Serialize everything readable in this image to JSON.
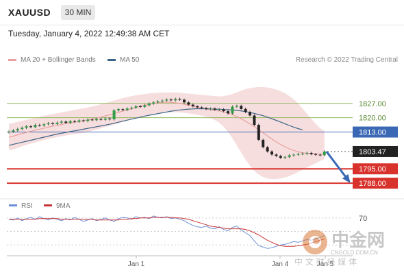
{
  "header": {
    "symbol": "XAUUSD",
    "timeframe": "30 MIN"
  },
  "timestamp": "Tuesday, January 4, 2022 12:49:38 AM CET",
  "legend": {
    "ma20": "MA 20 + Bollinger Bands",
    "ma50": "MA 50"
  },
  "credit": "Research © 2022 Trading Central",
  "rsi_legend": {
    "rsi": "RSI",
    "ma9": "9MA"
  },
  "watermark": {
    "cn": "中金网",
    "url": "CNGOLD.COM.CN",
    "sub": "中 文 财 经 媒 体"
  },
  "colors": {
    "ma20": "#e8a0a0",
    "ma50": "#3c6488",
    "support": "#d8322c",
    "resistance": "#8db85c",
    "pivot": "#3a68b4",
    "rsi": "#6a8fd6",
    "rsi_ma": "#cc3333",
    "arrow": "#3a68b4"
  },
  "chart_data": {
    "type": "candlestick",
    "y_range": [
      1783,
      1839
    ],
    "x_ticks": [
      "Jan 1",
      "Jan 4",
      "Jan 5"
    ],
    "price_levels": [
      {
        "label": "1827.00",
        "value": 1827.0,
        "kind": "resistance"
      },
      {
        "label": "1820.00",
        "value": 1820.0,
        "kind": "resistance"
      },
      {
        "label": "1813.00",
        "value": 1813.0,
        "kind": "pivot"
      },
      {
        "label": "1803.47",
        "value": 1803.47,
        "kind": "last"
      },
      {
        "label": "1795.00",
        "value": 1795.0,
        "kind": "support"
      },
      {
        "label": "1788.00",
        "value": 1788.0,
        "kind": "support"
      }
    ],
    "close": [
      1813.2,
      1813.8,
      1814.5,
      1815.1,
      1815.8,
      1815.4,
      1816.5,
      1816.2,
      1816.8,
      1817.3,
      1816.9,
      1817.6,
      1818.1,
      1817.5,
      1818.3,
      1818.0,
      1818.7,
      1818.4,
      1819.1,
      1818.8,
      1819.4,
      1819.0,
      1819.6,
      1819.2,
      1823.6,
      1824.2,
      1823.8,
      1824.5,
      1824.9,
      1825.6,
      1825.3,
      1826.1,
      1826.9,
      1827.5,
      1828.0,
      1828.4,
      1828.9,
      1828.5,
      1829.2,
      1828.8,
      1827.5,
      1826.4,
      1825.6,
      1825.1,
      1824.7,
      1824.2,
      1824.5,
      1823.9,
      1824.1,
      1823.2,
      1822.1,
      1825.4,
      1825.8,
      1824.3,
      1822.8,
      1821.1,
      1816.5,
      1809.2,
      1805.6,
      1803.5,
      1802.0,
      1801.3,
      1800.4,
      1800.8,
      1801.6,
      1801.9,
      1802.3,
      1802.4,
      1802.8,
      1802.2,
      1801.9,
      1801.7,
      1803.47
    ],
    "ma20": [
      1810.5,
      1811.0,
      1811.6,
      1812.2,
      1812.8,
      1813.4,
      1813.9,
      1814.4,
      1814.9,
      1815.4,
      1815.9,
      1816.3,
      1816.7,
      1817.1,
      1817.5,
      1817.8,
      1818.1,
      1818.4,
      1818.8,
      1819.3,
      1819.8,
      1820.3,
      1820.9,
      1821.4,
      1822.0,
      1822.6,
      1823.2,
      1823.8,
      1824.4,
      1825.0,
      1825.6,
      1826.1,
      1826.6,
      1827.0,
      1827.3,
      1827.5,
      1827.6,
      1827.5,
      1827.3,
      1827.0,
      1826.6,
      1826.1,
      1825.6,
      1825.1,
      1824.6,
      1824.2,
      1823.8,
      1823.5,
      1823.3,
      1822.8,
      1822.2,
      1821.5,
      1820.6,
      1819.5,
      1818.3,
      1817.0,
      1815.6,
      1814.1,
      1812.6,
      1811.1,
      1809.6,
      1808.2,
      1806.9,
      1805.8,
      1804.8,
      1804.0,
      1803.4,
      1802.9,
      1802.6,
      1802.4,
      1802.3,
      1802.2,
      1802.2
    ],
    "ma50": [
      1806.5,
      1807.0,
      1807.5,
      1808.0,
      1808.5,
      1809.0,
      1809.5,
      1810.0,
      1810.5,
      1811.0,
      1811.5,
      1812.0,
      1812.4,
      1812.8,
      1813.2,
      1813.6,
      1814.0,
      1814.4,
      1814.8,
      1815.2,
      1815.6,
      1816.0,
      1816.4,
      1816.8,
      1817.3,
      1817.8,
      1818.3,
      1818.8,
      1819.3,
      1819.8,
      1820.3,
      1820.8,
      1821.2,
      1821.6,
      1822.0,
      1822.4,
      1822.8,
      1823.2,
      1823.5,
      1823.8,
      1824.0,
      1824.2,
      1824.3,
      1824.4,
      1824.4,
      1824.4,
      1824.3,
      1824.2,
      1824.1,
      1824.0,
      1823.9,
      1823.8,
      1823.6,
      1823.3,
      1823.0,
      1822.6,
      1822.1,
      1821.6,
      1821.0,
      1820.3,
      1819.5,
      1818.7,
      1817.9,
      1817.0,
      1816.2,
      1815.4,
      1814.7,
      1814.1
    ],
    "bb_upper": [
      1817,
      1817.5,
      1818,
      1818.5,
      1819,
      1819.5,
      1820,
      1820.5,
      1821,
      1821.4,
      1821.8,
      1822.2,
      1822.6,
      1823,
      1823.4,
      1823.8,
      1824.2,
      1824.6,
      1825,
      1825.5,
      1826,
      1826.6,
      1827.2,
      1827.8,
      1828.4,
      1829,
      1829.6,
      1830.1,
      1830.6,
      1831,
      1831.3,
      1831.6,
      1831.9,
      1832.1,
      1832.2,
      1832.3,
      1832.4,
      1832.4,
      1832.3,
      1832.2,
      1832,
      1831.8,
      1831.6,
      1831.4,
      1831.2,
      1831,
      1830.8,
      1830.6,
      1830.4,
      1830.6,
      1831,
      1831.6,
      1832.4,
      1833.2,
      1834,
      1834.5,
      1834.8,
      1835,
      1835,
      1834.8,
      1834.4,
      1833.8,
      1833,
      1832,
      1830.6,
      1829,
      1827,
      1824.5,
      1822,
      1819.5,
      1817,
      1815,
      1813.5
    ],
    "bb_lower": [
      1804,
      1804.5,
      1805.2,
      1806,
      1806.7,
      1807.3,
      1807.9,
      1808.5,
      1809.1,
      1809.6,
      1810.1,
      1810.5,
      1810.9,
      1811.3,
      1811.7,
      1812,
      1812.3,
      1812.6,
      1813,
      1813.6,
      1814.2,
      1814.8,
      1815.4,
      1816,
      1816.6,
      1817.3,
      1818,
      1818.6,
      1819.2,
      1819.8,
      1820.3,
      1820.8,
      1821.3,
      1821.7,
      1822.1,
      1822.4,
      1822.6,
      1822.7,
      1822.7,
      1822.6,
      1822.4,
      1822.1,
      1821.8,
      1821.4,
      1821,
      1820.4,
      1819.8,
      1818.8,
      1817.6,
      1815.6,
      1813,
      1810,
      1806.5,
      1803,
      1799.5,
      1796.5,
      1794,
      1792.2,
      1791,
      1790.3,
      1790,
      1790,
      1790.3,
      1790.8,
      1791.5,
      1792.4,
      1793.4,
      1794.5,
      1795.6,
      1796.7,
      1797.8,
      1798.8,
      1799.8
    ],
    "rsi_axis_label": "70",
    "rsi": [
      68,
      67,
      70,
      66,
      69,
      71,
      68,
      72,
      69,
      67,
      70,
      68,
      66,
      69,
      67,
      71,
      68,
      65,
      67,
      69,
      66,
      68,
      70,
      67,
      65,
      69,
      71,
      70,
      68,
      72,
      70,
      71,
      69,
      73,
      71,
      70,
      72,
      69,
      70,
      68,
      66,
      62,
      59,
      57,
      56,
      58,
      55,
      54,
      57,
      53,
      51,
      56,
      58,
      52,
      48,
      44,
      36,
      29,
      27,
      25,
      26,
      28,
      30,
      31,
      33,
      35,
      34,
      36,
      38,
      37,
      39,
      41,
      44
    ],
    "rsi_ma": [
      68,
      68,
      68,
      68,
      68,
      68,
      68,
      69,
      69,
      69,
      69,
      69,
      68,
      68,
      68,
      68,
      68,
      68,
      68,
      68,
      67,
      67,
      67,
      67,
      67,
      67,
      68,
      68,
      69,
      69,
      70,
      70,
      70,
      71,
      71,
      71,
      71,
      71,
      70,
      70,
      69,
      68,
      66,
      64,
      62,
      60,
      58,
      57,
      56,
      55,
      54,
      54,
      54,
      54,
      53,
      51,
      48,
      45,
      41,
      37,
      34,
      31,
      29,
      28,
      28,
      28,
      29,
      30,
      31,
      33,
      35,
      37,
      39
    ]
  }
}
